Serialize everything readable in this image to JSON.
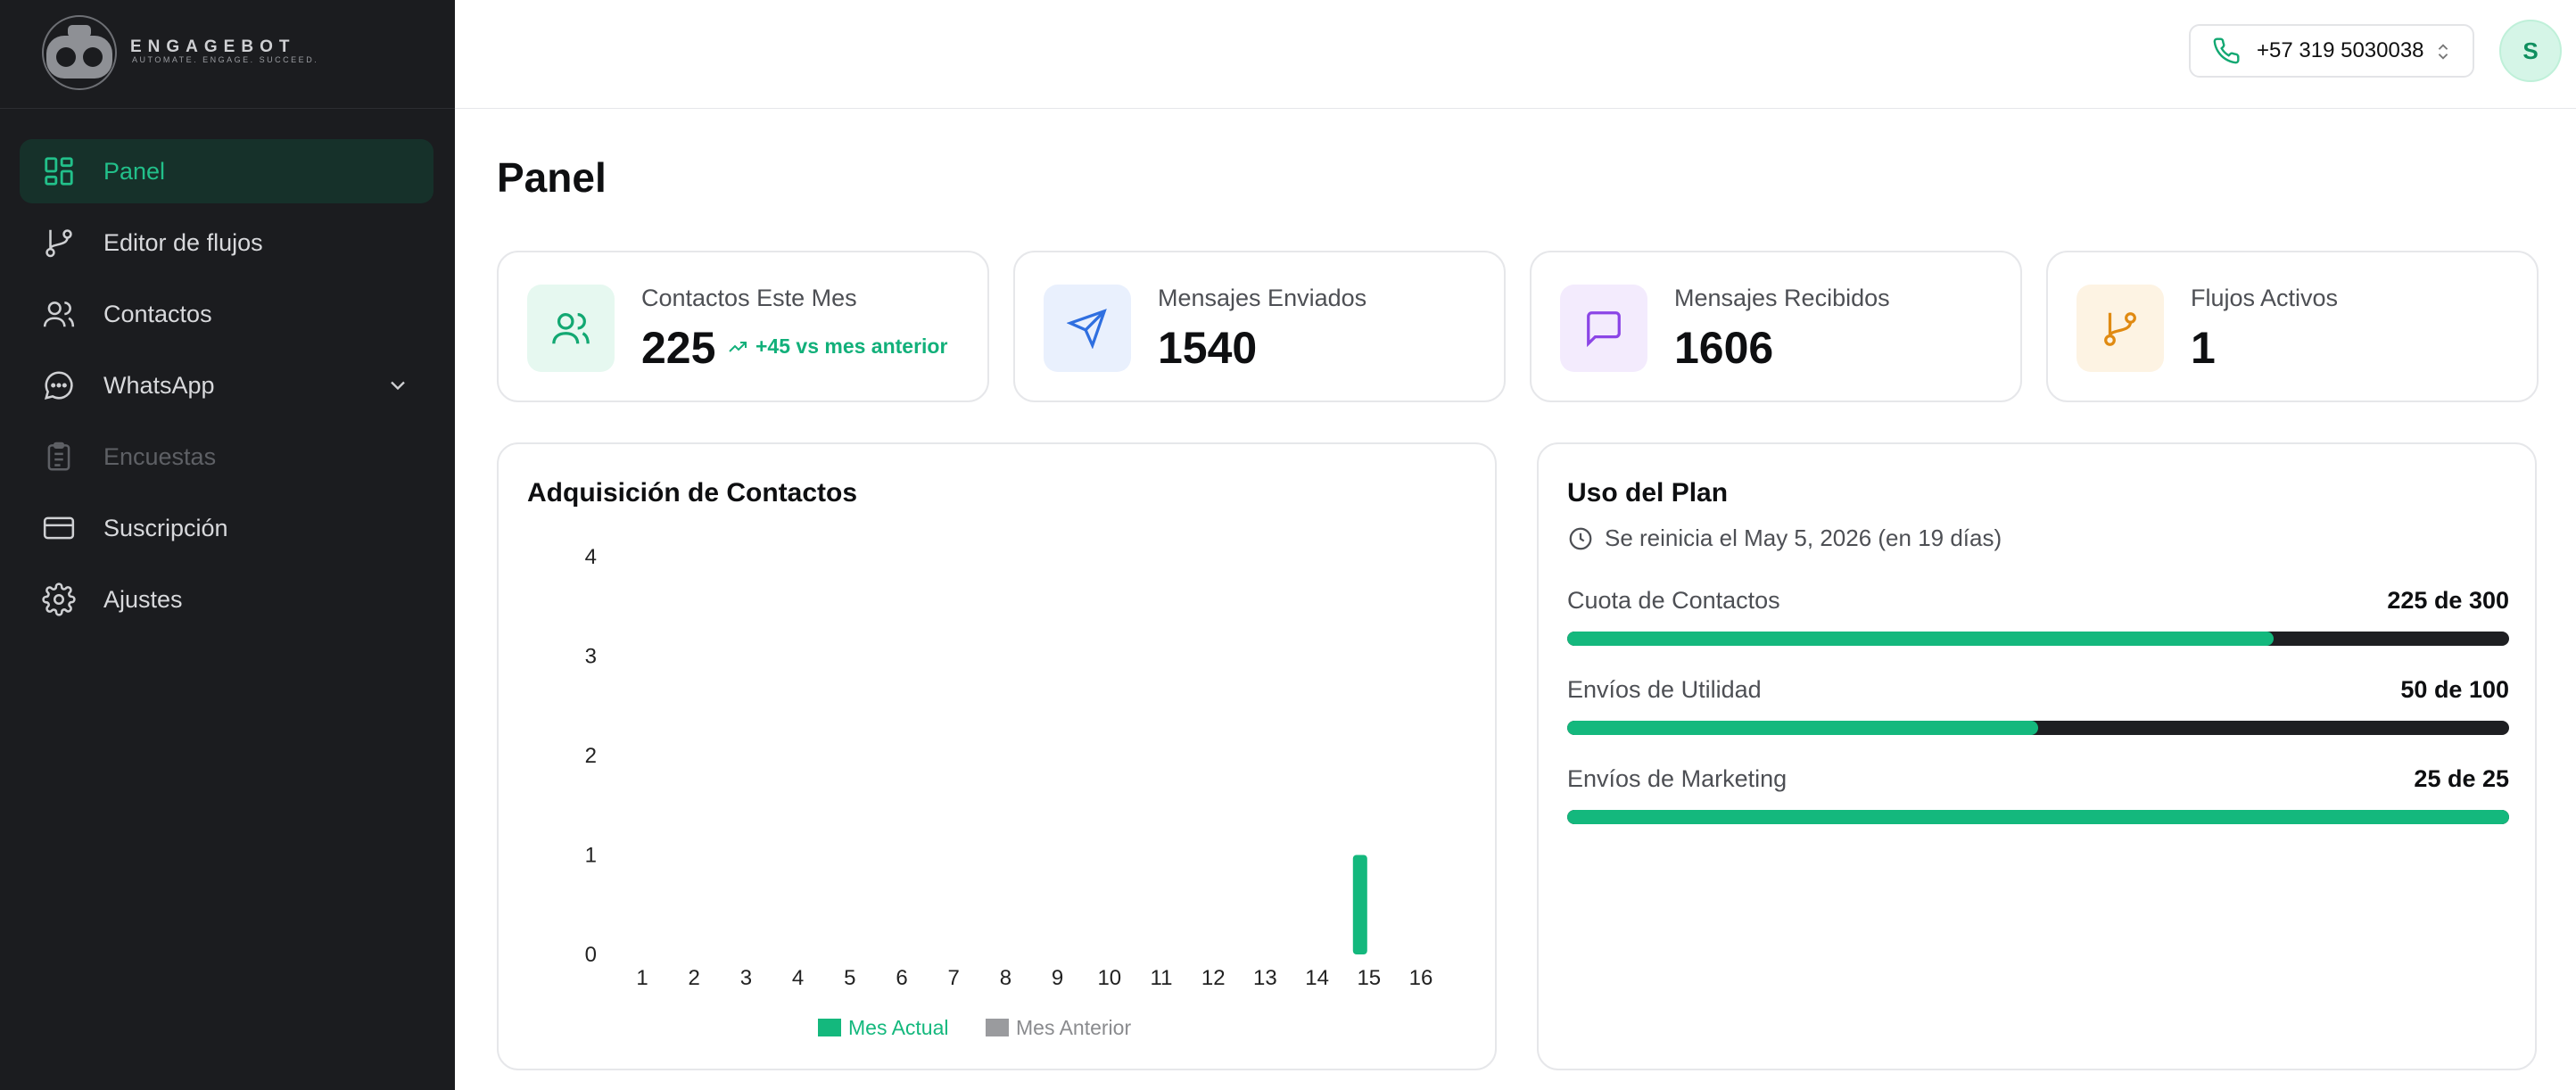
{
  "brand": {
    "name": "ENGAGEBOT",
    "tagline": "AUTOMATE. ENGAGE. SUCCEED."
  },
  "sidebar": {
    "items": [
      {
        "label": "Panel",
        "icon": "dashboard-grid-icon",
        "state": "active"
      },
      {
        "label": "Editor de flujos",
        "icon": "git-branch-icon",
        "state": "normal"
      },
      {
        "label": "Contactos",
        "icon": "users-icon",
        "state": "normal"
      },
      {
        "label": "WhatsApp",
        "icon": "chat-bubble-icon",
        "state": "normal",
        "expandable": true
      },
      {
        "label": "Encuestas",
        "icon": "clipboard-icon",
        "state": "disabled"
      },
      {
        "label": "Suscripción",
        "icon": "credit-card-icon",
        "state": "normal"
      },
      {
        "label": "Ajustes",
        "icon": "gear-icon",
        "state": "normal"
      }
    ]
  },
  "header": {
    "phone": "+57 319 5030038",
    "avatar_initial": "S"
  },
  "page": {
    "title": "Panel"
  },
  "stats": [
    {
      "label": "Contactos Este Mes",
      "value": "225",
      "trend": "+45 vs mes anterior",
      "icon": "users-icon",
      "color": "#12a872",
      "bg": "#e6f8f0"
    },
    {
      "label": "Mensajes Enviados",
      "value": "1540",
      "icon": "send-icon",
      "color": "#2f6fe0",
      "bg": "#e9f0fd"
    },
    {
      "label": "Mensajes Recibidos",
      "value": "1606",
      "icon": "message-icon",
      "color": "#8b45e6",
      "bg": "#f3ebfd"
    },
    {
      "label": "Flujos Activos",
      "value": "1",
      "icon": "git-branch-icon",
      "color": "#e08a12",
      "bg": "#fdf3e3"
    }
  ],
  "acquisition": {
    "title": "Adquisición de Contactos"
  },
  "chart_data": {
    "type": "bar",
    "title": "Adquisición de Contactos",
    "categories": [
      "1",
      "2",
      "3",
      "4",
      "5",
      "6",
      "7",
      "8",
      "9",
      "10",
      "11",
      "12",
      "13",
      "14",
      "15",
      "16"
    ],
    "series": [
      {
        "name": "Mes Actual",
        "color": "#14b87d",
        "values": [
          0,
          0,
          0,
          0,
          0,
          0,
          0,
          0,
          0,
          0,
          0,
          0,
          0,
          0,
          1,
          0
        ]
      },
      {
        "name": "Mes Anterior",
        "color": "#9a9b9e",
        "values": [
          0,
          0,
          0,
          0,
          0,
          0,
          0,
          0,
          0,
          0,
          0,
          0,
          0,
          0,
          0,
          0
        ]
      }
    ],
    "yticks": [
      "0",
      "1",
      "2",
      "3",
      "4"
    ],
    "ylim": [
      0,
      4
    ],
    "legend_position": "bottom-center",
    "grid": false
  },
  "plan": {
    "title": "Uso del Plan",
    "reset_text": "Se reinicia el May 5, 2026 (en 19 días)",
    "quotas": [
      {
        "label": "Cuota de Contactos",
        "value": "225 de 300",
        "fraction": 0.75
      },
      {
        "label": "Envíos de Utilidad",
        "value": "50 de 100",
        "fraction": 0.5
      },
      {
        "label": "Envíos de Marketing",
        "value": "25 de 25",
        "fraction": 1.0
      }
    ]
  }
}
